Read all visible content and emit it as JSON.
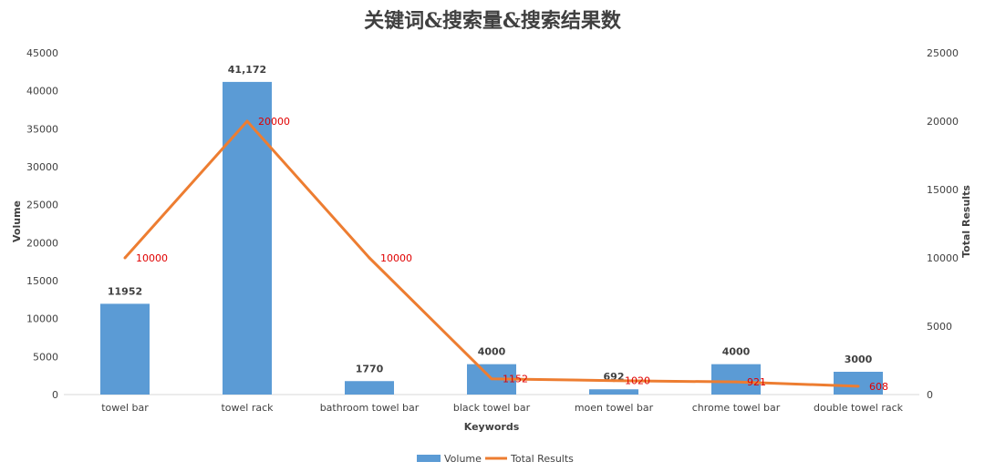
{
  "chart_data": {
    "type": "bar",
    "title": "关键词&搜索量&搜索结果数",
    "xlabel": "Keywords",
    "ylabel": "Volume",
    "y2label": "Total Results",
    "categories": [
      "towel bar",
      "towel rack",
      "bathroom towel bar",
      "black towel bar",
      "moen towel bar",
      "chrome towel bar",
      "double towel rack"
    ],
    "series": [
      {
        "name": "Volume",
        "type": "bar",
        "axis": "left",
        "color": "#5b9bd5",
        "values": [
          11952,
          41172,
          1770,
          4000,
          692,
          4000,
          3000
        ],
        "labels": [
          "11952",
          "41,172",
          "1770",
          "4000",
          "692",
          "4000",
          "3000"
        ]
      },
      {
        "name": "Total Results",
        "type": "line",
        "axis": "right",
        "color": "#ed7d31",
        "values": [
          10000,
          20000,
          10000,
          1152,
          1020,
          921,
          608
        ],
        "labels": [
          "10000",
          "20000",
          "10000",
          "1152",
          "1020",
          "921",
          "608"
        ]
      }
    ],
    "ylim": [
      0,
      45000
    ],
    "yticks": [
      0,
      5000,
      10000,
      15000,
      20000,
      25000,
      30000,
      35000,
      40000,
      45000
    ],
    "y2lim": [
      0,
      25000
    ],
    "y2ticks": [
      0,
      5000,
      10000,
      15000,
      20000,
      25000
    ],
    "grid": false,
    "legend_position": "bottom"
  }
}
